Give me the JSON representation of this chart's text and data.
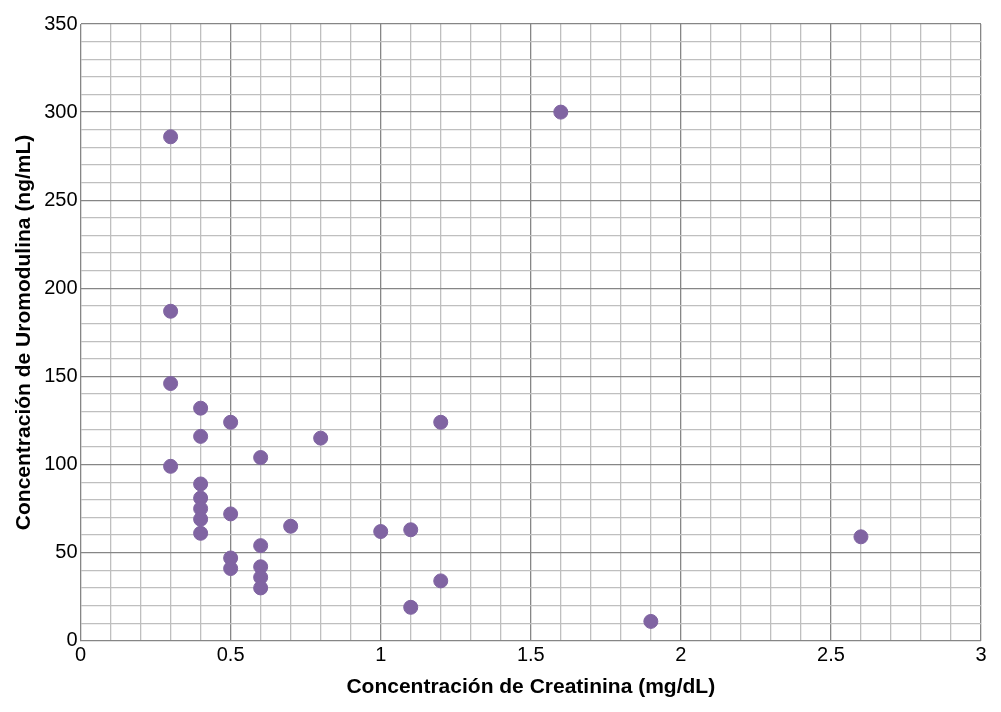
{
  "chart_data": {
    "type": "scatter",
    "xlabel": "Concentración de Creatinina (mg/dL)",
    "ylabel": "Concentración de Uromodulina (ng/mL)",
    "x": [
      0.3,
      0.3,
      0.3,
      0.3,
      0.4,
      0.4,
      0.4,
      0.4,
      0.4,
      0.4,
      0.4,
      0.5,
      0.5,
      0.5,
      0.5,
      0.6,
      0.6,
      0.6,
      0.6,
      0.6,
      0.7,
      0.8,
      1.0,
      1.1,
      1.1,
      1.2,
      1.2,
      1.6,
      1.9,
      2.6
    ],
    "values": [
      286,
      187,
      146,
      99,
      132,
      116,
      89,
      81,
      75,
      69,
      61,
      124,
      72,
      47,
      41,
      104,
      54,
      42,
      36,
      30,
      65,
      115,
      62,
      63,
      19,
      124,
      34,
      300,
      11,
      59
    ],
    "color": "#8064a2",
    "marker": "circle",
    "legend": false,
    "grid": true,
    "xlim": [
      0,
      3
    ],
    "xticks": [
      0,
      {
        "value": 0.1,
        "label": null
      },
      {
        "value": 0.2,
        "label": null
      },
      {
        "value": 0.3,
        "label": null
      },
      {
        "value": 0.4,
        "label": null
      },
      0.5,
      {
        "value": 0.6,
        "label": null
      },
      {
        "value": 0.7,
        "label": null
      },
      {
        "value": 0.8,
        "label": null
      },
      {
        "value": 0.9,
        "label": null
      },
      1,
      {
        "value": 1.1,
        "label": null
      },
      {
        "value": 1.2,
        "label": null
      },
      {
        "value": 1.3,
        "label": null
      },
      {
        "value": 1.4,
        "label": null
      },
      1.5,
      {
        "value": 1.6,
        "label": null
      },
      {
        "value": 1.7,
        "label": null
      },
      {
        "value": 1.8,
        "label": null
      },
      {
        "value": 1.9,
        "label": null
      },
      2,
      {
        "value": 2.1,
        "label": null
      },
      {
        "value": 2.2,
        "label": null
      },
      {
        "value": 2.3,
        "label": null
      },
      {
        "value": 2.4,
        "label": null
      },
      2.5,
      {
        "value": 2.6,
        "label": null
      },
      {
        "value": 2.7,
        "label": null
      },
      {
        "value": 2.8,
        "label": null
      },
      {
        "value": 2.9,
        "label": null
      },
      3
    ],
    "ylim": [
      0,
      350
    ],
    "yticks": [
      0,
      {
        "value": 10,
        "label": null
      },
      {
        "value": 20,
        "label": null
      },
      {
        "value": 30,
        "label": null
      },
      {
        "value": 40,
        "label": null
      },
      50,
      {
        "value": 60,
        "label": null
      },
      {
        "value": 70,
        "label": null
      },
      {
        "value": 80,
        "label": null
      },
      {
        "value": 90,
        "label": null
      },
      100,
      {
        "value": 110,
        "label": null
      },
      {
        "value": 120,
        "label": null
      },
      {
        "value": 130,
        "label": null
      },
      {
        "value": 140,
        "label": null
      },
      150,
      {
        "value": 160,
        "label": null
      },
      {
        "value": 170,
        "label": null
      },
      {
        "value": 180,
        "label": null
      },
      {
        "value": 190,
        "label": null
      },
      200,
      {
        "value": 210,
        "label": null
      },
      {
        "value": 220,
        "label": null
      },
      {
        "value": 230,
        "label": null
      },
      {
        "value": 240,
        "label": null
      },
      250,
      {
        "value": 260,
        "label": null
      },
      {
        "value": 270,
        "label": null
      },
      {
        "value": 280,
        "label": null
      },
      {
        "value": 290,
        "label": null
      },
      300,
      {
        "value": 310,
        "label": null
      },
      {
        "value": 320,
        "label": null
      },
      {
        "value": 330,
        "label": null
      },
      {
        "value": 340,
        "label": null
      },
      350
    ]
  }
}
